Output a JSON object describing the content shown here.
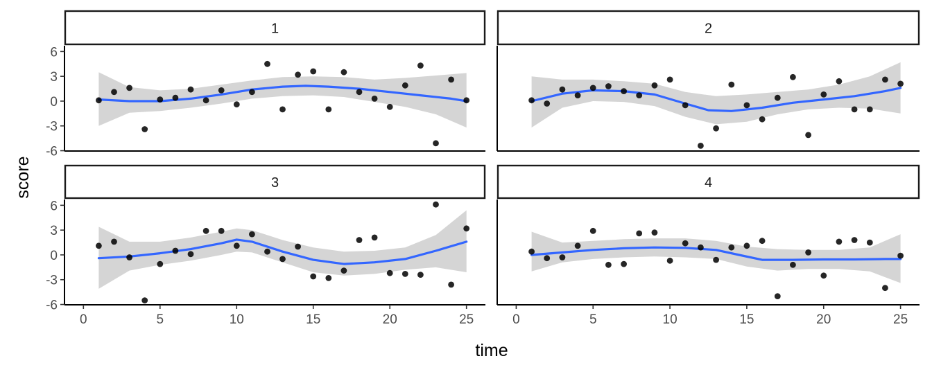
{
  "chart_data": {
    "type": "scatter",
    "title": "",
    "xlabel": "time",
    "ylabel": "score",
    "xlim": [
      0,
      25
    ],
    "ylim": [
      -6,
      6
    ],
    "x_ticks": [
      0,
      5,
      10,
      15,
      20,
      25
    ],
    "y_ticks": [
      -6,
      -3,
      0,
      3,
      6
    ],
    "grid": false,
    "colors": {
      "points": "#000000",
      "smooth_line": "#3366FF",
      "confidence_band": "#d3d3d3",
      "strip_border": "#1a1a1a"
    },
    "panels": [
      {
        "label": "1",
        "points": [
          [
            1,
            0.1
          ],
          [
            2,
            1.1
          ],
          [
            3,
            1.6
          ],
          [
            4,
            -3.4
          ],
          [
            5,
            0.2
          ],
          [
            6,
            0.4
          ],
          [
            7,
            1.4
          ],
          [
            8,
            0.1
          ],
          [
            9,
            1.3
          ],
          [
            10,
            -0.4
          ],
          [
            11,
            1.1
          ],
          [
            12,
            4.5
          ],
          [
            13,
            -1.0
          ],
          [
            14,
            3.2
          ],
          [
            15,
            3.6
          ],
          [
            16,
            -1.0
          ],
          [
            17,
            3.5
          ],
          [
            18,
            1.1
          ],
          [
            19,
            0.3
          ],
          [
            20,
            -0.7
          ],
          [
            21,
            1.9
          ],
          [
            22,
            4.3
          ],
          [
            23,
            -5.1
          ],
          [
            24,
            2.6
          ],
          [
            25,
            0.1
          ]
        ],
        "smooth": [
          [
            1,
            0.2
          ],
          [
            3,
            0.0
          ],
          [
            5,
            0.0
          ],
          [
            7,
            0.3
          ],
          [
            9,
            0.8
          ],
          [
            11,
            1.4
          ],
          [
            13,
            1.75
          ],
          [
            14.5,
            1.85
          ],
          [
            16,
            1.75
          ],
          [
            18,
            1.5
          ],
          [
            20,
            1.1
          ],
          [
            22,
            0.7
          ],
          [
            24,
            0.3
          ],
          [
            25,
            0.0
          ]
        ],
        "band": [
          [
            1,
            -3.0,
            3.5
          ],
          [
            3,
            -1.4,
            1.7
          ],
          [
            5,
            -1.2,
            1.3
          ],
          [
            7,
            -0.8,
            1.5
          ],
          [
            9,
            -0.3,
            2.0
          ],
          [
            11,
            0.3,
            2.5
          ],
          [
            13,
            0.6,
            2.9
          ],
          [
            15,
            0.7,
            3.0
          ],
          [
            17,
            0.5,
            2.9
          ],
          [
            19,
            -0.1,
            2.6
          ],
          [
            21,
            -0.7,
            2.8
          ],
          [
            23,
            -1.6,
            3.1
          ],
          [
            25,
            -3.2,
            3.4
          ]
        ]
      },
      {
        "label": "2",
        "points": [
          [
            1,
            0.1
          ],
          [
            2,
            -0.3
          ],
          [
            3,
            1.4
          ],
          [
            4,
            0.7
          ],
          [
            5,
            1.6
          ],
          [
            6,
            1.8
          ],
          [
            7,
            1.2
          ],
          [
            8,
            0.7
          ],
          [
            9,
            1.9
          ],
          [
            10,
            2.6
          ],
          [
            11,
            -0.5
          ],
          [
            12,
            -5.4
          ],
          [
            13,
            -3.3
          ],
          [
            14,
            2.0
          ],
          [
            15,
            -0.5
          ],
          [
            16,
            -2.2
          ],
          [
            17,
            0.4
          ],
          [
            18,
            2.9
          ],
          [
            19,
            -4.1
          ],
          [
            20,
            0.8
          ],
          [
            21,
            2.4
          ],
          [
            22,
            -1.0
          ],
          [
            23,
            -1.0
          ],
          [
            24,
            2.6
          ],
          [
            25,
            2.1
          ]
        ],
        "smooth": [
          [
            1,
            0.0
          ],
          [
            3,
            0.9
          ],
          [
            5,
            1.3
          ],
          [
            7,
            1.2
          ],
          [
            9,
            0.8
          ],
          [
            11,
            -0.3
          ],
          [
            12.5,
            -1.1
          ],
          [
            14,
            -1.2
          ],
          [
            16,
            -0.8
          ],
          [
            18,
            -0.2
          ],
          [
            20,
            0.2
          ],
          [
            22,
            0.6
          ],
          [
            24,
            1.2
          ],
          [
            25,
            1.6
          ]
        ],
        "band": [
          [
            1,
            -3.2,
            3.0
          ],
          [
            3,
            -0.8,
            2.6
          ],
          [
            5,
            0.0,
            2.6
          ],
          [
            7,
            -0.1,
            2.4
          ],
          [
            9,
            -0.6,
            2.1
          ],
          [
            11,
            -1.9,
            1.1
          ],
          [
            13,
            -2.8,
            0.6
          ],
          [
            15,
            -2.5,
            0.8
          ],
          [
            17,
            -1.6,
            1.1
          ],
          [
            19,
            -1.0,
            1.4
          ],
          [
            21,
            -0.8,
            2.0
          ],
          [
            23,
            -0.9,
            3.0
          ],
          [
            25,
            -1.5,
            4.7
          ]
        ]
      },
      {
        "label": "3",
        "points": [
          [
            1,
            1.1
          ],
          [
            2,
            1.6
          ],
          [
            3,
            -0.3
          ],
          [
            4,
            -5.5
          ],
          [
            5,
            -1.1
          ],
          [
            6,
            0.5
          ],
          [
            7,
            0.1
          ],
          [
            8,
            2.9
          ],
          [
            9,
            2.9
          ],
          [
            10,
            1.1
          ],
          [
            11,
            2.5
          ],
          [
            12,
            0.4
          ],
          [
            13,
            -0.5
          ],
          [
            14,
            1.0
          ],
          [
            15,
            -2.6
          ],
          [
            16,
            -2.8
          ],
          [
            17,
            -1.9
          ],
          [
            18,
            1.8
          ],
          [
            19,
            2.1
          ],
          [
            20,
            -2.2
          ],
          [
            21,
            -2.3
          ],
          [
            22,
            -2.4
          ],
          [
            23,
            6.1
          ],
          [
            24,
            -3.6
          ],
          [
            25,
            3.2
          ]
        ],
        "smooth": [
          [
            1,
            -0.4
          ],
          [
            3,
            -0.2
          ],
          [
            5,
            0.2
          ],
          [
            7,
            0.7
          ],
          [
            9,
            1.4
          ],
          [
            10,
            1.85
          ],
          [
            11,
            1.6
          ],
          [
            13,
            0.4
          ],
          [
            15,
            -0.6
          ],
          [
            17,
            -1.1
          ],
          [
            19,
            -0.9
          ],
          [
            21,
            -0.5
          ],
          [
            23,
            0.5
          ],
          [
            25,
            1.6
          ]
        ],
        "band": [
          [
            1,
            -4.1,
            3.4
          ],
          [
            3,
            -1.9,
            1.6
          ],
          [
            5,
            -1.2,
            1.6
          ],
          [
            7,
            -0.7,
            2.1
          ],
          [
            9,
            0.0,
            2.8
          ],
          [
            10,
            0.4,
            3.2
          ],
          [
            11,
            0.3,
            3.0
          ],
          [
            13,
            -0.9,
            1.8
          ],
          [
            15,
            -2.1,
            0.9
          ],
          [
            17,
            -2.5,
            0.4
          ],
          [
            19,
            -2.3,
            0.5
          ],
          [
            21,
            -1.8,
            0.9
          ],
          [
            23,
            -1.5,
            2.4
          ],
          [
            25,
            -2.1,
            5.4
          ]
        ]
      },
      {
        "label": "4",
        "points": [
          [
            1,
            0.4
          ],
          [
            2,
            -0.4
          ],
          [
            3,
            -0.3
          ],
          [
            4,
            1.1
          ],
          [
            5,
            2.9
          ],
          [
            6,
            -1.2
          ],
          [
            7,
            -1.1
          ],
          [
            8,
            2.6
          ],
          [
            9,
            2.7
          ],
          [
            10,
            -0.7
          ],
          [
            11,
            1.4
          ],
          [
            12,
            0.9
          ],
          [
            13,
            -0.6
          ],
          [
            14,
            0.9
          ],
          [
            15,
            1.1
          ],
          [
            16,
            1.7
          ],
          [
            17,
            -5.0
          ],
          [
            18,
            -1.2
          ],
          [
            19,
            0.3
          ],
          [
            20,
            -2.5
          ],
          [
            21,
            1.6
          ],
          [
            22,
            1.8
          ],
          [
            23,
            1.5
          ],
          [
            24,
            -4.0
          ],
          [
            25,
            -0.1
          ]
        ],
        "smooth": [
          [
            1,
            0.0
          ],
          [
            3,
            0.3
          ],
          [
            5,
            0.6
          ],
          [
            7,
            0.8
          ],
          [
            9,
            0.9
          ],
          [
            11,
            0.85
          ],
          [
            13,
            0.6
          ],
          [
            14.5,
            0.0
          ],
          [
            16,
            -0.6
          ],
          [
            18,
            -0.6
          ],
          [
            20,
            -0.55
          ],
          [
            22,
            -0.55
          ],
          [
            24,
            -0.5
          ],
          [
            25,
            -0.5
          ]
        ],
        "band": [
          [
            1,
            -2.0,
            2.8
          ],
          [
            3,
            -0.9,
            1.5
          ],
          [
            5,
            -0.5,
            1.7
          ],
          [
            7,
            -0.3,
            1.9
          ],
          [
            9,
            -0.2,
            2.0
          ],
          [
            11,
            -0.3,
            2.0
          ],
          [
            13,
            -0.5,
            1.7
          ],
          [
            15,
            -1.4,
            1.0
          ],
          [
            17,
            -1.9,
            0.7
          ],
          [
            19,
            -1.7,
            0.6
          ],
          [
            21,
            -1.7,
            0.6
          ],
          [
            23,
            -2.0,
            0.9
          ],
          [
            25,
            -3.4,
            2.5
          ]
        ]
      }
    ]
  }
}
